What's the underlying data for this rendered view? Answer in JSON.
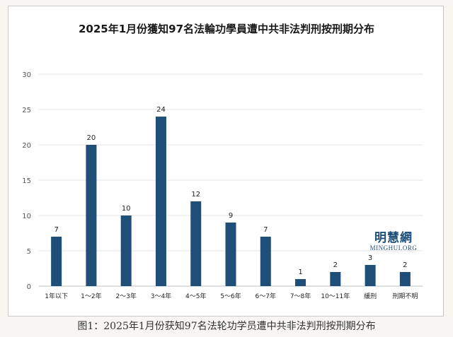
{
  "chart_data": {
    "type": "bar",
    "title": "2025年1月份獲知97名法輪功學員遭中共非法判刑按刑期分布",
    "categories": [
      "1年以下",
      "1～2年",
      "2～3年",
      "3～4年",
      "4～5年",
      "5～6年",
      "6～7年",
      "7～8年",
      "10～11年",
      "緩刑",
      "刑期不明"
    ],
    "series": [
      {
        "values": [
          7,
          20,
          10,
          24,
          12,
          9,
          7,
          1,
          2,
          3,
          2
        ]
      }
    ],
    "data_labels": [
      "7",
      "20",
      "10",
      "24",
      "12",
      "9",
      "7",
      "1",
      "2",
      "3",
      "2"
    ],
    "ylim": [
      0,
      30
    ],
    "yticks": [
      0,
      5,
      10,
      15,
      20,
      25,
      30
    ],
    "ytick_labels": [
      "0",
      "5",
      "10",
      "15",
      "20",
      "25",
      "30"
    ],
    "xlabel": "",
    "ylabel": "",
    "grid": true,
    "legend": "none",
    "bar_color": "#1f4e79",
    "grid_color": "#e3e3e3",
    "axis_color": "#bfbfbf"
  },
  "watermark": {
    "name": "明慧網",
    "domain": "MINGHUI.ORG",
    "color": "#1f4e79"
  },
  "caption": "图1：2025年1月份获知97名法轮功学员遭中共非法判刑按刑期分布"
}
